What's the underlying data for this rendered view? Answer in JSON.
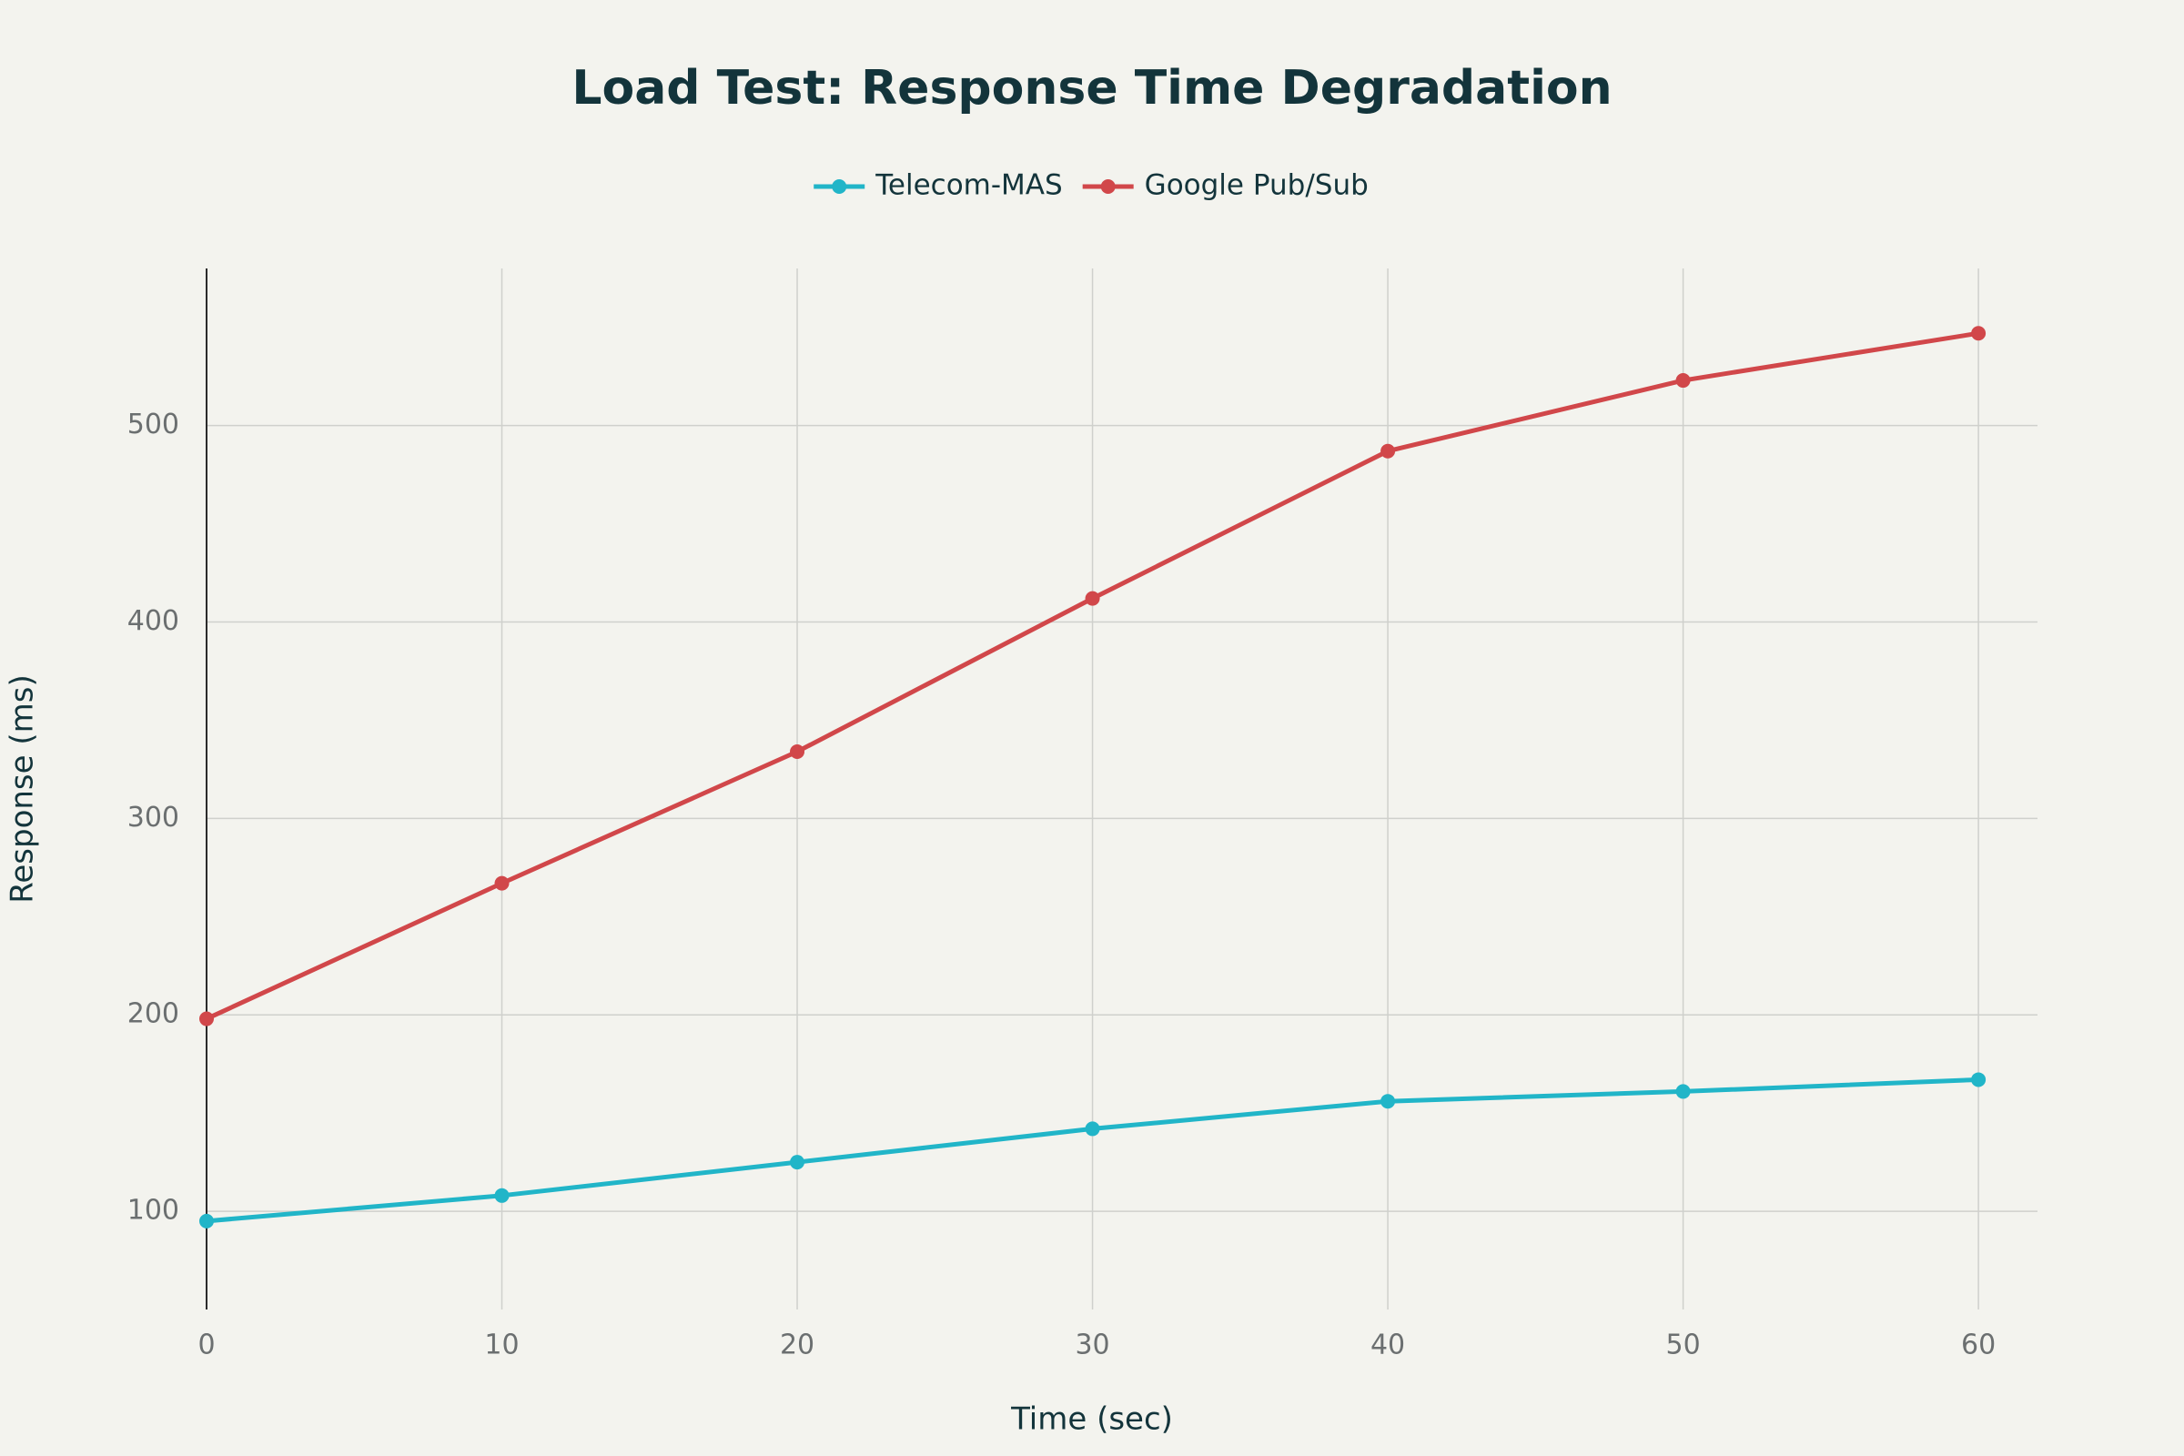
{
  "chart_data": {
    "type": "line",
    "title": "Load Test: Response Time Degradation",
    "x_label": "Time (sec)",
    "y_label": "Response (ms)",
    "x": [
      0,
      10,
      20,
      30,
      40,
      50,
      60
    ],
    "series": [
      {
        "name": "Telecom-MAS",
        "color": "#21b5c8",
        "values": [
          95,
          108,
          125,
          142,
          156,
          161,
          167
        ]
      },
      {
        "name": "Google Pub/Sub",
        "color": "#d1474a",
        "values": [
          198,
          267,
          334,
          412,
          487,
          523,
          547
        ]
      }
    ],
    "xlim": [
      0,
      62
    ],
    "xticks": [
      0,
      10,
      20,
      30,
      40,
      50,
      60
    ],
    "ylim": [
      50,
      580
    ],
    "yticks": [
      100,
      200,
      300,
      400,
      500
    ],
    "grid": true,
    "zeroline": true,
    "legend": "top"
  }
}
